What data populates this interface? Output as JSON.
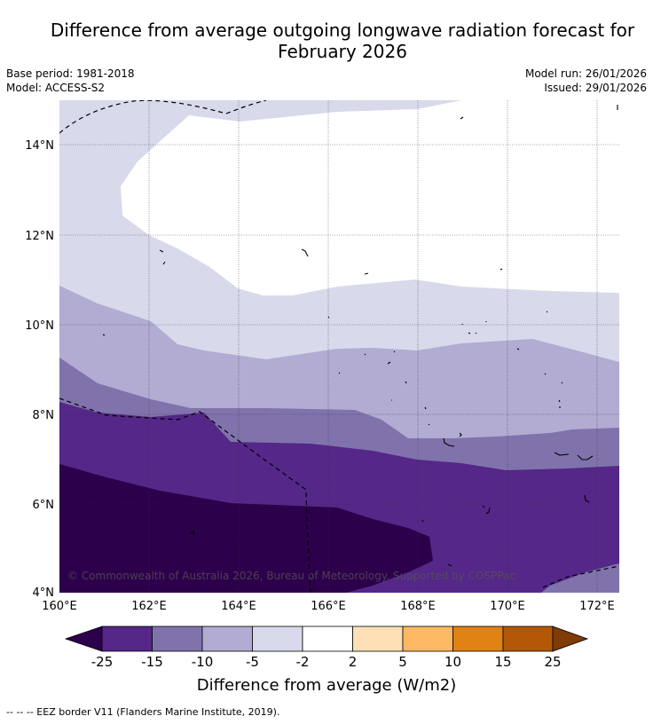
{
  "title_line1": "Difference from average outgoing longwave radiation forecast for",
  "title_line2": "February 2026",
  "meta": {
    "base_period": "Base period: 1981-2018",
    "model": "Model: ACCESS-S2",
    "model_run": "Model run: 26/01/2026",
    "issued": "Issued: 29/01/2026"
  },
  "map": {
    "lat_ticks": [
      "14°N",
      "12°N",
      "10°N",
      "8°N",
      "6°N",
      "4°N"
    ],
    "lon_ticks": [
      "160°E",
      "162°E",
      "164°E",
      "166°E",
      "168°E",
      "170°E",
      "172°E"
    ],
    "copyright": "© Commonwealth of Australia 2026, Bureau of Meteorology. Supported by COSPPac",
    "lon_range": [
      160,
      172.5
    ],
    "lat_range": [
      4,
      15
    ]
  },
  "legend": {
    "tick_labels": [
      "-25",
      "-15",
      "-10",
      "-5",
      "-2",
      "2",
      "5",
      "10",
      "15",
      "25"
    ],
    "label": "Difference from average (W/m2)",
    "bins": [
      {
        "range": "< -25",
        "color": "#2d004b"
      },
      {
        "range": "-25 to -15",
        "color": "#542788"
      },
      {
        "range": "-15 to -10",
        "color": "#8073ac"
      },
      {
        "range": "-10 to -5",
        "color": "#b2abd2"
      },
      {
        "range": "-5 to -2",
        "color": "#d8daeb"
      },
      {
        "range": "-2 to 2",
        "color": "#ffffff"
      },
      {
        "range": "2 to 5",
        "color": "#fee0b6"
      },
      {
        "range": "5 to 10",
        "color": "#fdb863"
      },
      {
        "range": "10 to 15",
        "color": "#e08214"
      },
      {
        "range": "15 to 25",
        "color": "#b35806"
      },
      {
        "range": "> 25",
        "color": "#7f3b08"
      }
    ]
  },
  "footnote": "-- -- -- EEZ border V11 (Flanders Marine Institute, 2019)."
}
